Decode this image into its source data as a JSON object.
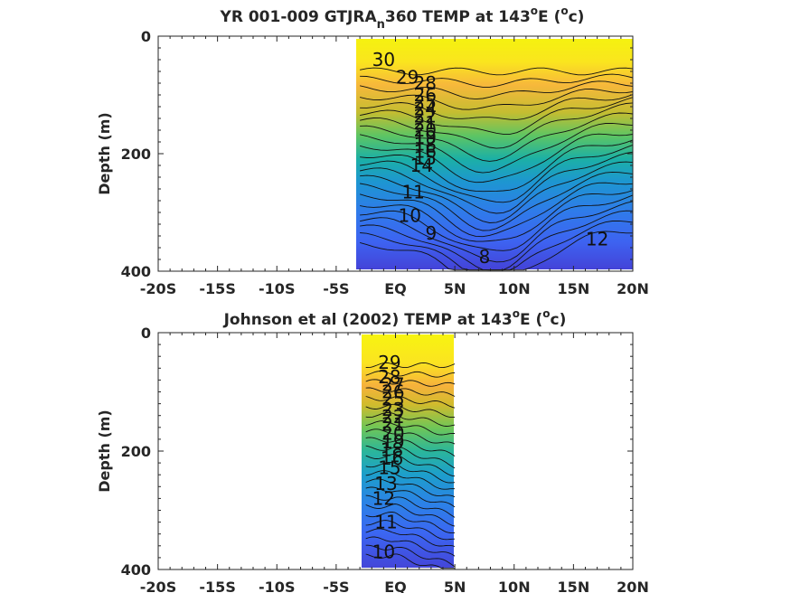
{
  "chart_data": [
    {
      "type": "contour",
      "title_main": "YR 001-009 GTJRA",
      "title_sub": "n",
      "title_tail": "360 TEMP at 143",
      "title_sup": "o",
      "title_end1": "E (",
      "title_sup2": "o",
      "title_end2": "c)",
      "xlim": [
        -20,
        20
      ],
      "ylim": [
        0,
        400
      ],
      "y_reversed": true,
      "data_extent_x": [
        -3,
        20
      ],
      "xticks": [
        -20,
        -15,
        -10,
        -5,
        0,
        5,
        10,
        15,
        20
      ],
      "xtick_labels": [
        "-20S",
        "-15S",
        "-10S",
        "-5S",
        "EQ",
        "5N",
        "10N",
        "15N",
        "20N"
      ],
      "yticks": [
        0,
        200,
        400
      ],
      "ytick_labels": [
        "0",
        "200",
        "400"
      ],
      "ylabel": "Depth (m)",
      "contour_labels": [
        {
          "text": "30",
          "x": -1,
          "y": 40
        },
        {
          "text": "29",
          "x": 1,
          "y": 70
        },
        {
          "text": "28",
          "x": 2.5,
          "y": 80
        },
        {
          "text": "26",
          "x": 2.5,
          "y": 100
        },
        {
          "text": "25",
          "x": 2.5,
          "y": 112
        },
        {
          "text": "24",
          "x": 2.5,
          "y": 124
        },
        {
          "text": "22",
          "x": 2.5,
          "y": 136
        },
        {
          "text": "21",
          "x": 2.5,
          "y": 148
        },
        {
          "text": "20",
          "x": 2.5,
          "y": 160
        },
        {
          "text": "19",
          "x": 2.5,
          "y": 172
        },
        {
          "text": "18",
          "x": 2.5,
          "y": 184
        },
        {
          "text": "16",
          "x": 2.5,
          "y": 196
        },
        {
          "text": "15",
          "x": 2.5,
          "y": 208
        },
        {
          "text": "14",
          "x": 2.2,
          "y": 220
        },
        {
          "text": "11",
          "x": 1.5,
          "y": 265
        },
        {
          "text": "10",
          "x": 1.2,
          "y": 305
        },
        {
          "text": "9",
          "x": 3,
          "y": 335
        },
        {
          "text": "8",
          "x": 7.5,
          "y": 375
        },
        {
          "text": "12",
          "x": 17,
          "y": 345
        }
      ]
    },
    {
      "type": "contour",
      "title_main": "Johnson et al (2002) TEMP at 143",
      "title_sup": "o",
      "title_end1": "E (",
      "title_sup2": "o",
      "title_end2": "c)",
      "xlim": [
        -20,
        20
      ],
      "ylim": [
        0,
        400
      ],
      "y_reversed": true,
      "data_extent_x": [
        -2.5,
        5
      ],
      "xticks": [
        -20,
        -15,
        -10,
        -5,
        0,
        5,
        10,
        15,
        20
      ],
      "xtick_labels": [
        "-20S",
        "-15S",
        "-10S",
        "-5S",
        "EQ",
        "5N",
        "10N",
        "15N",
        "20N"
      ],
      "yticks": [
        0,
        200,
        400
      ],
      "ytick_labels": [
        "0",
        "200",
        "400"
      ],
      "ylabel": "Depth (m)",
      "contour_labels": [
        {
          "text": "29",
          "x": -0.5,
          "y": 50
        },
        {
          "text": "28",
          "x": -0.5,
          "y": 75
        },
        {
          "text": "27",
          "x": -0.2,
          "y": 88
        },
        {
          "text": "26",
          "x": -0.2,
          "y": 100
        },
        {
          "text": "25",
          "x": -0.2,
          "y": 112
        },
        {
          "text": "23",
          "x": -0.2,
          "y": 130
        },
        {
          "text": "22",
          "x": -0.2,
          "y": 142
        },
        {
          "text": "21",
          "x": -0.2,
          "y": 155
        },
        {
          "text": "20",
          "x": -0.2,
          "y": 170
        },
        {
          "text": "19",
          "x": -0.2,
          "y": 185
        },
        {
          "text": "18",
          "x": -0.3,
          "y": 198
        },
        {
          "text": "16",
          "x": -0.3,
          "y": 212
        },
        {
          "text": "15",
          "x": -0.5,
          "y": 228
        },
        {
          "text": "13",
          "x": -0.8,
          "y": 255
        },
        {
          "text": "12",
          "x": -1,
          "y": 280
        },
        {
          "text": "11",
          "x": -0.8,
          "y": 320
        },
        {
          "text": "10",
          "x": -1,
          "y": 370
        }
      ]
    }
  ]
}
